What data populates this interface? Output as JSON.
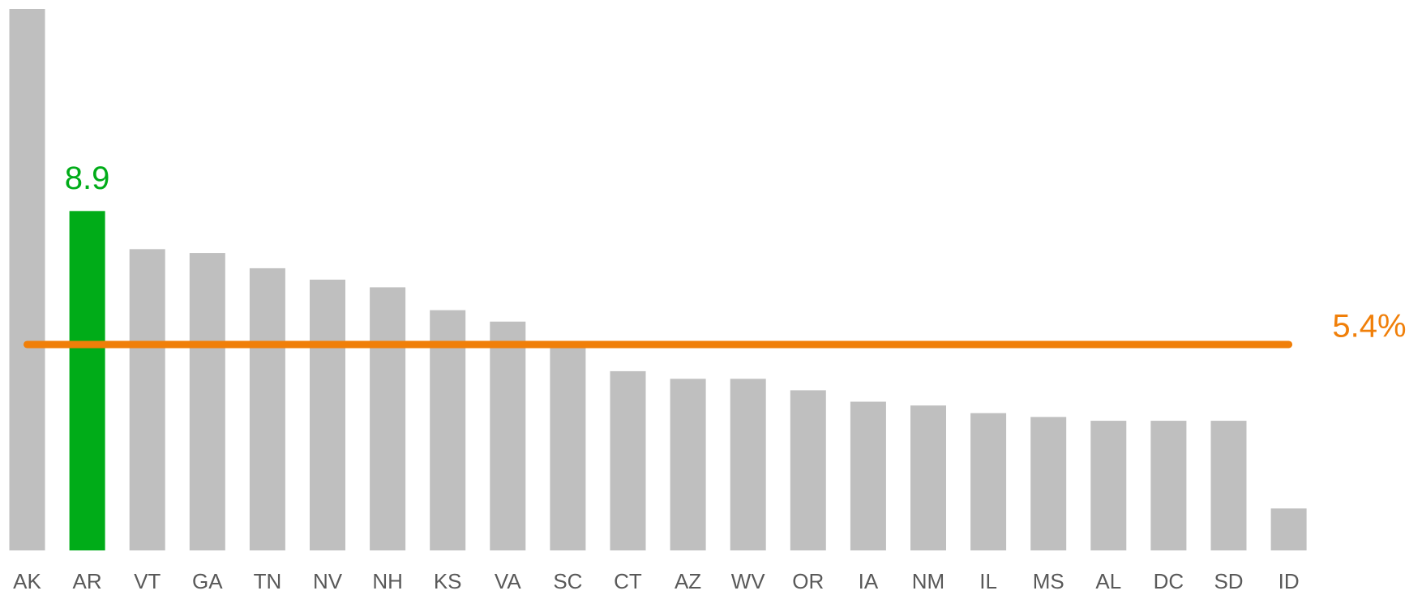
{
  "chart_data": {
    "type": "bar",
    "categories": [
      "AK",
      "AR",
      "VT",
      "GA",
      "TN",
      "NV",
      "NH",
      "KS",
      "VA",
      "SC",
      "CT",
      "AZ",
      "WV",
      "OR",
      "IA",
      "NM",
      "IL",
      "MS",
      "AL",
      "DC",
      "SD",
      "ID"
    ],
    "values": [
      14.2,
      8.9,
      7.9,
      7.8,
      7.4,
      7.1,
      6.9,
      6.3,
      6.0,
      5.4,
      4.7,
      4.5,
      4.5,
      4.2,
      3.9,
      3.8,
      3.6,
      3.5,
      3.4,
      3.4,
      3.4,
      1.1
    ],
    "value_labels": [
      null,
      "8.9",
      null,
      null,
      null,
      null,
      null,
      null,
      null,
      null,
      null,
      null,
      null,
      null,
      null,
      null,
      null,
      null,
      null,
      null,
      null,
      null
    ],
    "colors": [
      "#bfbfbf",
      "#00ac18",
      "#bfbfbf",
      "#bfbfbf",
      "#bfbfbf",
      "#bfbfbf",
      "#bfbfbf",
      "#bfbfbf",
      "#bfbfbf",
      "#bfbfbf",
      "#bfbfbf",
      "#bfbfbf",
      "#bfbfbf",
      "#bfbfbf",
      "#bfbfbf",
      "#bfbfbf",
      "#bfbfbf",
      "#bfbfbf",
      "#bfbfbf",
      "#bfbfbf",
      "#bfbfbf",
      "#bfbfbf"
    ],
    "reference_line": {
      "value": 5.4,
      "label": "5.4%",
      "color": "#f07f09"
    }
  }
}
